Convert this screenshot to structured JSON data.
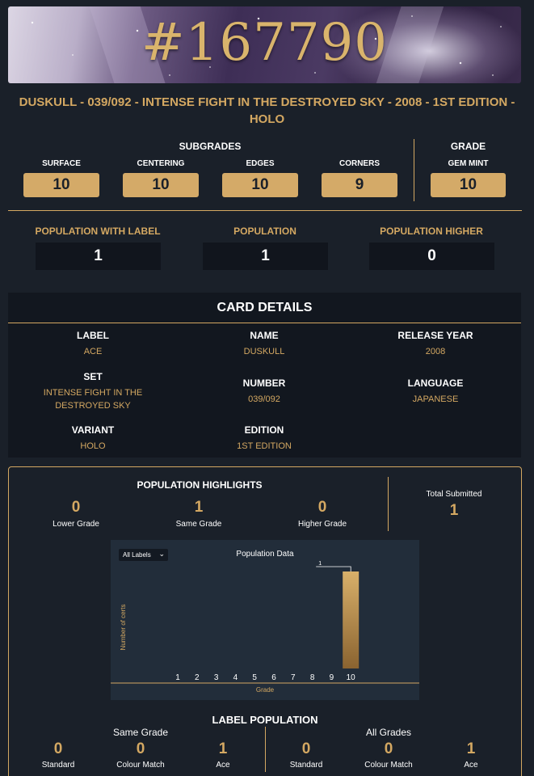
{
  "banner": {
    "cert_number": "#167790"
  },
  "card_title": "DUSKULL - 039/092 - INTENSE FIGHT IN THE DESTROYED SKY - 2008 - 1ST EDITION - HOLO",
  "subgrades": {
    "heading": "SUBGRADES",
    "items": [
      {
        "label": "SURFACE",
        "value": "10"
      },
      {
        "label": "CENTERING",
        "value": "10"
      },
      {
        "label": "EDGES",
        "value": "10"
      },
      {
        "label": "CORNERS",
        "value": "9"
      }
    ]
  },
  "grade": {
    "heading": "GRADE",
    "label": "GEM MINT",
    "value": "10"
  },
  "population": [
    {
      "label": "POPULATION WITH LABEL",
      "value": "1"
    },
    {
      "label": "POPULATION",
      "value": "1"
    },
    {
      "label": "POPULATION HIGHER",
      "value": "0"
    }
  ],
  "card_details": {
    "title": "CARD DETAILS",
    "fields": {
      "label": {
        "key": "LABEL",
        "value": "ACE"
      },
      "name": {
        "key": "NAME",
        "value": "DUSKULL"
      },
      "release_year": {
        "key": "RELEASE YEAR",
        "value": "2008"
      },
      "set": {
        "key": "SET",
        "value": "INTENSE FIGHT IN THE DESTROYED SKY"
      },
      "number": {
        "key": "NUMBER",
        "value": "039/092"
      },
      "language": {
        "key": "LANGUAGE",
        "value": "JAPANESE"
      },
      "variant": {
        "key": "VARIANT",
        "value": "HOLO"
      },
      "edition": {
        "key": "EDITION",
        "value": "1ST EDITION"
      }
    }
  },
  "population_highlights": {
    "heading": "POPULATION HIGHLIGHTS",
    "items": [
      {
        "label": "Lower Grade",
        "value": "0"
      },
      {
        "label": "Same Grade",
        "value": "1"
      },
      {
        "label": "Higher Grade",
        "value": "0"
      }
    ],
    "total_submitted": {
      "label": "Total Submitted",
      "value": "1"
    }
  },
  "chart_filter": {
    "selected": "All Labels"
  },
  "chart_data": {
    "type": "bar",
    "title": "Population Data",
    "xlabel": "Grade",
    "ylabel": "Number of certs",
    "categories": [
      "1",
      "2",
      "3",
      "4",
      "5",
      "6",
      "7",
      "8",
      "9",
      "10"
    ],
    "values": [
      0,
      0,
      0,
      0,
      0,
      0,
      0,
      0,
      0,
      1
    ],
    "ylim": [
      0,
      1
    ],
    "grid": false,
    "data_labels": [
      "",
      "",
      "",
      "",
      "",
      "",
      "",
      "",
      "",
      "1"
    ]
  },
  "label_population": {
    "heading": "LABEL POPULATION",
    "groups": [
      {
        "title": "Same Grade",
        "items": [
          {
            "label": "Standard",
            "value": "0"
          },
          {
            "label": "Colour Match",
            "value": "0"
          },
          {
            "label": "Ace",
            "value": "1"
          }
        ]
      },
      {
        "title": "All Grades",
        "items": [
          {
            "label": "Standard",
            "value": "0"
          },
          {
            "label": "Colour Match",
            "value": "0"
          },
          {
            "label": "Ace",
            "value": "1"
          }
        ]
      }
    ]
  },
  "colors": {
    "accent": "#d4a862",
    "background": "#1a2029",
    "panel": "#12171f"
  }
}
